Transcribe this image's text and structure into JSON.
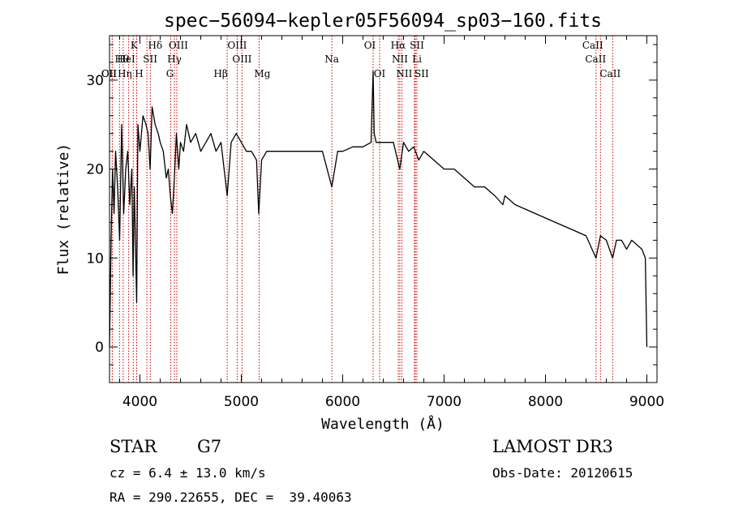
{
  "chart_data": {
    "type": "line",
    "title": "spec−56094−kepler05F56094_sp03−160.fits",
    "xlabel": "Wavelength (Å)",
    "ylabel": "Flux (relative)",
    "xlim": [
      3700,
      9100
    ],
    "ylim": [
      -4,
      35
    ],
    "x_ticks": [
      4000,
      5000,
      6000,
      7000,
      8000,
      9000
    ],
    "y_ticks": [
      0,
      10,
      20,
      30
    ],
    "grid": false,
    "series": [
      {
        "name": "spectrum",
        "x": [
          3700,
          3715,
          3730,
          3745,
          3760,
          3780,
          3800,
          3820,
          3840,
          3860,
          3880,
          3900,
          3920,
          3933,
          3945,
          3968,
          3980,
          4000,
          4030,
          4060,
          4080,
          4101,
          4120,
          4150,
          4180,
          4200,
          4230,
          4260,
          4280,
          4300,
          4320,
          4340,
          4360,
          4383,
          4400,
          4430,
          4460,
          4500,
          4550,
          4600,
          4650,
          4700,
          4750,
          4800,
          4861,
          4900,
          4950,
          5000,
          5050,
          5100,
          5150,
          5172,
          5200,
          5250,
          5300,
          5400,
          5500,
          5600,
          5700,
          5800,
          5893,
          5950,
          6000,
          6100,
          6200,
          6280,
          6300,
          6310,
          6330,
          6400,
          6500,
          6563,
          6600,
          6650,
          6700,
          6750,
          6800,
          6900,
          7000,
          7100,
          7200,
          7300,
          7400,
          7500,
          7580,
          7600,
          7700,
          7800,
          7900,
          8000,
          8100,
          8200,
          8300,
          8400,
          8498,
          8542,
          8600,
          8662,
          8700,
          8750,
          8800,
          8850,
          8900,
          8950,
          8985,
          9000
        ],
        "y": [
          0,
          12,
          20,
          15,
          22,
          18,
          12,
          25,
          15,
          20,
          22,
          16,
          20,
          8,
          18,
          5,
          25,
          22,
          26,
          25,
          24,
          20,
          27,
          25,
          24,
          23,
          22,
          19,
          20,
          17,
          15,
          19,
          24,
          20,
          23,
          22,
          25,
          23,
          24,
          22,
          23,
          24,
          22,
          23,
          17,
          23,
          24,
          23,
          22,
          22,
          21,
          15,
          21,
          22,
          22,
          22,
          22,
          22,
          22,
          22,
          18,
          22,
          22,
          22.5,
          22.5,
          23,
          31,
          24,
          23,
          23,
          23,
          20,
          23,
          22,
          22.5,
          21,
          22,
          21,
          20,
          20,
          19,
          18,
          18,
          17,
          16,
          17,
          16,
          15.5,
          15,
          14.5,
          14,
          13.5,
          13,
          12.5,
          10,
          12.5,
          12,
          10,
          12,
          12,
          11,
          12,
          11.5,
          11,
          10,
          0
        ]
      }
    ],
    "reference_lines": [
      {
        "name": "Hθ",
        "wavelength": 3798
      },
      {
        "name": "OII",
        "wavelength": 3727
      },
      {
        "name": "CII",
        "wavelength": 3727
      },
      {
        "name": "Hη",
        "wavelength": 3835
      },
      {
        "name": "HeI",
        "wavelength": 3889
      },
      {
        "name": "K",
        "wavelength": 3934
      },
      {
        "name": "H",
        "wavelength": 3968
      },
      {
        "name": "SII",
        "wavelength": 4069
      },
      {
        "name": "Hδ",
        "wavelength": 4102
      },
      {
        "name": "OIII",
        "wavelength": 4363
      },
      {
        "name": "Hγ",
        "wavelength": 4340
      },
      {
        "name": "G",
        "wavelength": 4304
      },
      {
        "name": "Hβ",
        "wavelength": 4861
      },
      {
        "name": "OIII",
        "wavelength": 4959
      },
      {
        "name": "OIII",
        "wavelength": 5007
      },
      {
        "name": "Mg",
        "wavelength": 5175
      },
      {
        "name": "Na",
        "wavelength": 5893
      },
      {
        "name": "OI",
        "wavelength": 6300
      },
      {
        "name": "OI",
        "wavelength": 6364
      },
      {
        "name": "Hα",
        "wavelength": 6563
      },
      {
        "name": "NII",
        "wavelength": 6548
      },
      {
        "name": "NII",
        "wavelength": 6583
      },
      {
        "name": "SII",
        "wavelength": 6716
      },
      {
        "name": "Li",
        "wavelength": 6708
      },
      {
        "name": "SII",
        "wavelength": 6731
      },
      {
        "name": "CaII",
        "wavelength": 8498
      },
      {
        "name": "CaII",
        "wavelength": 8542
      },
      {
        "name": "CaII",
        "wavelength": 8662
      }
    ]
  },
  "info": {
    "class": "STAR",
    "subclass": "G7",
    "survey": "LAMOST DR3",
    "cz": "cz = 6.4 ± 13.0 km/s",
    "obs_date": "Obs-Date: 20120615",
    "coords": "RA = 290.22655, DEC =  39.40063"
  },
  "colors": {
    "axis": "#000000",
    "spectrum": "#000000",
    "reference_line": "#cc0000"
  }
}
